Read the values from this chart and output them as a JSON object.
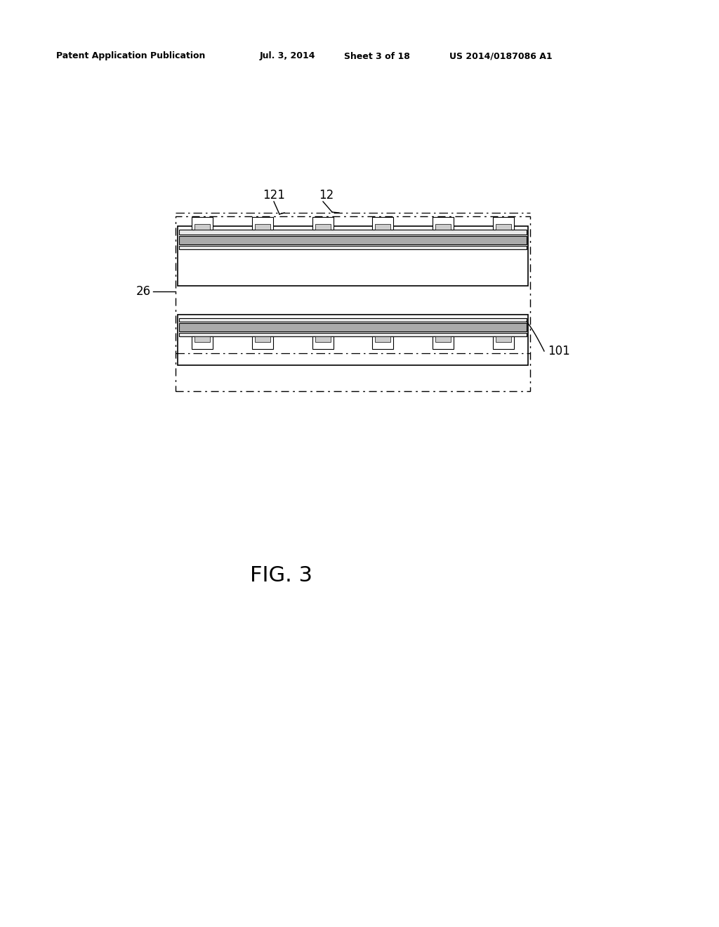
{
  "bg_color": "#ffffff",
  "line_color": "#000000",
  "header_text1": "Patent Application Publication",
  "header_text2": "Jul. 3, 2014",
  "header_text3": "Sheet 3 of 18",
  "header_text4": "US 2014/0187086 A1",
  "figure_label": "FIG. 3",
  "label_121": "121",
  "label_12": "12",
  "label_26": "26",
  "label_101": "101"
}
